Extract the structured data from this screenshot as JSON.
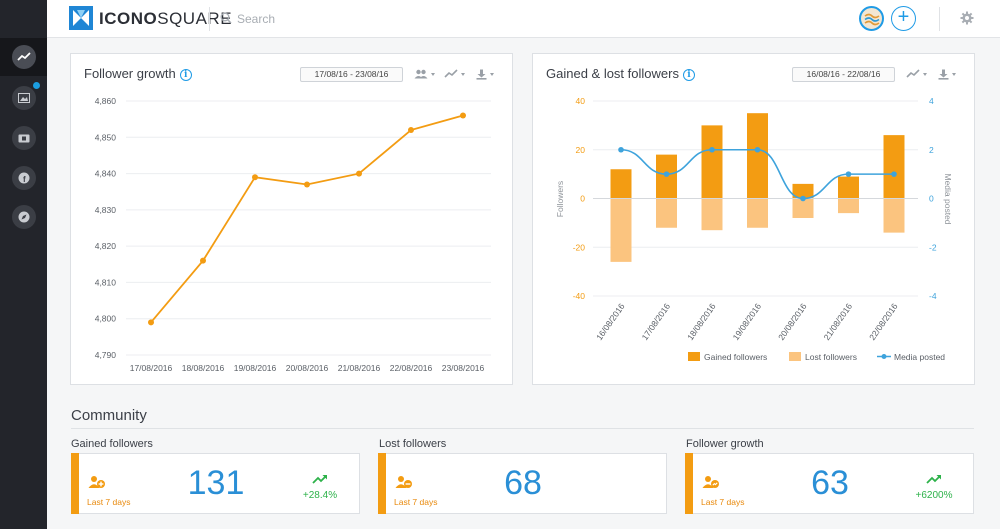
{
  "app": {
    "logo_bold": "ICONO",
    "logo_rest": "SQUARE"
  },
  "search": {
    "placeholder": "Search"
  },
  "sidebar": {
    "items": [
      {
        "name": "analytics",
        "active": true
      },
      {
        "name": "media",
        "notification": true
      },
      {
        "name": "ticket"
      },
      {
        "name": "facebook"
      },
      {
        "name": "compass"
      }
    ]
  },
  "colors": {
    "accent_orange": "#f39c12",
    "light_orange": "#fbc47f",
    "blue": "#3ea3dc",
    "green": "#2db24a"
  },
  "follower_growth": {
    "title": "Follower growth",
    "info_icon": "i",
    "date_range": "17/08/16 - 23/08/16"
  },
  "gained_lost": {
    "title": "Gained & lost followers",
    "info_icon": "i",
    "date_range": "16/08/16 - 22/08/16"
  },
  "chart_data": [
    {
      "type": "line",
      "x": [
        "17/08/2016",
        "18/08/2016",
        "19/08/2016",
        "20/08/2016",
        "21/08/2016",
        "22/08/2016",
        "23/08/2016"
      ],
      "series": [
        {
          "values": [
            4799,
            4816,
            4839,
            4837,
            4840,
            4852,
            4856
          ]
        }
      ],
      "ylim": [
        4790,
        4860
      ],
      "yticks": [
        "4,790",
        "4,800",
        "4,810",
        "4,820",
        "4,830",
        "4,840",
        "4,850",
        "4,860"
      ],
      "title": "Follower growth",
      "xlabel": "",
      "ylabel": "",
      "grid": true
    },
    {
      "type": "bar",
      "categories": [
        "16/08/2016",
        "17/08/2016",
        "18/08/2016",
        "19/08/2016",
        "20/08/2016",
        "21/08/2016",
        "22/08/2016"
      ],
      "series": [
        {
          "name": "Gained followers",
          "values": [
            12,
            18,
            30,
            35,
            6,
            9,
            26
          ]
        },
        {
          "name": "Lost followers",
          "values": [
            -26,
            -12,
            -13,
            -12,
            -8,
            -6,
            -14
          ]
        },
        {
          "name": "Media posted",
          "type": "line",
          "axis": "right",
          "values": [
            2,
            1,
            2,
            2,
            0,
            1,
            1
          ]
        }
      ],
      "ylim": [
        -40,
        40
      ],
      "yticks": [
        "-40",
        "-20",
        "0",
        "20",
        "40"
      ],
      "y2lim": [
        -4,
        4
      ],
      "y2ticks": [
        "-4",
        "-2",
        "0",
        "2",
        "4"
      ],
      "title": "Gained & lost followers",
      "ylabel": "Followers",
      "y2label": "Media posted",
      "legend": "bottom-right",
      "grid": true
    }
  ],
  "community": {
    "title": "Community",
    "cards": [
      {
        "label": "Gained followers",
        "period": "Last 7 days",
        "value": "131",
        "change": "+28.4%"
      },
      {
        "label": "Lost followers",
        "period": "Last 7 days",
        "value": "68",
        "change": ""
      },
      {
        "label": "Follower growth",
        "period": "Last 7 days",
        "value": "63",
        "change": "+6200%"
      }
    ]
  }
}
